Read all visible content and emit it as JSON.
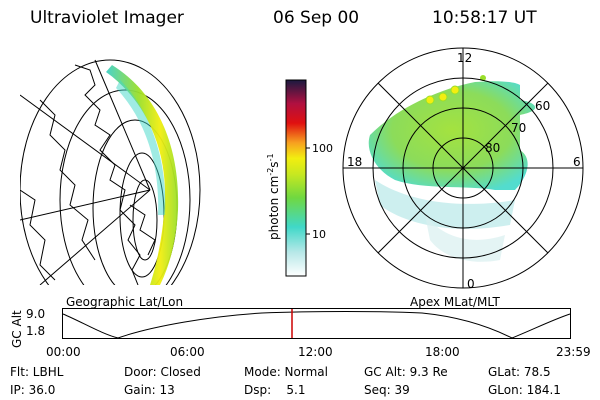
{
  "header": {
    "instrument": "Ultraviolet Imager",
    "date": "06 Sep 00",
    "time": "10:58:17 UT"
  },
  "colorbar": {
    "label": "photon cm",
    "label_sup1": "-2",
    "label_mid": "s",
    "label_sup2": "-1",
    "ticks": [
      "100",
      "10"
    ]
  },
  "polar": {
    "mlt_labels": [
      "12",
      "18",
      "6",
      "0"
    ],
    "lat_labels": [
      "60",
      "70",
      "80"
    ]
  },
  "panels": {
    "geo_label": "Geographic Lat/Lon",
    "apex_label": "Apex  MLat/MLT"
  },
  "altitude_plot": {
    "axis_label": "GC Alt",
    "y_ticks": [
      "9.0",
      "1.8"
    ],
    "x_ticks": [
      "00:00",
      "06:00",
      "12:00",
      "18:00",
      "23:59"
    ],
    "current_marker_color": "#cc0000"
  },
  "info": {
    "flt": "Flt: LBHL",
    "door": "Door: Closed",
    "mode": "Mode: Normal",
    "gc_alt": "GC Alt: 9.3 Re",
    "glat": "GLat:  78.5",
    "ip": "IP: 36.0",
    "gain": "Gain: 13",
    "dsp": "Dsp:    5.1",
    "seq": "Seq: 39",
    "glon": "GLon: 184.1"
  },
  "colors": {
    "scale_low": "#ffffff",
    "scale_cyan": "#40d8c8",
    "scale_green": "#9adf2a",
    "scale_yellow": "#f2ee10",
    "scale_orange": "#f7a020",
    "scale_red": "#e01010",
    "scale_top": "#1a1a40"
  }
}
